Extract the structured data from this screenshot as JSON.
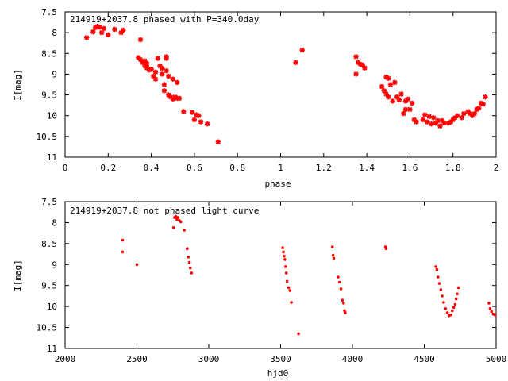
{
  "chart_data": [
    {
      "type": "scatter",
      "title": "214919+2037.8 phased with P=340.0day",
      "xlabel": "phase",
      "ylabel": "I[mag]",
      "xlim": [
        0,
        2
      ],
      "ylim": [
        11,
        7.5
      ],
      "y_inverted": true,
      "grid": false,
      "xticks": [
        "0",
        "0.2",
        "0.4",
        "0.6",
        "0.8",
        "1",
        "1.2",
        "1.4",
        "1.6",
        "1.8",
        "2"
      ],
      "yticks": [
        "7.5",
        "8",
        "8.5",
        "9",
        "9.5",
        "10",
        "10.5",
        "11"
      ],
      "marker": "star",
      "color": "#ff0000",
      "points": [
        [
          0.1,
          8.12
        ],
        [
          0.13,
          7.98
        ],
        [
          0.14,
          7.88
        ],
        [
          0.15,
          7.85
        ],
        [
          0.16,
          7.87
        ],
        [
          0.17,
          8.0
        ],
        [
          0.18,
          7.9
        ],
        [
          0.2,
          8.05
        ],
        [
          0.23,
          7.92
        ],
        [
          0.26,
          8.0
        ],
        [
          0.27,
          7.94
        ],
        [
          0.35,
          8.17
        ],
        [
          0.34,
          8.6
        ],
        [
          0.35,
          8.65
        ],
        [
          0.36,
          8.72
        ],
        [
          0.37,
          8.68
        ],
        [
          0.37,
          8.8
        ],
        [
          0.38,
          8.75
        ],
        [
          0.38,
          8.85
        ],
        [
          0.39,
          8.9
        ],
        [
          0.4,
          8.88
        ],
        [
          0.41,
          9.05
        ],
        [
          0.42,
          9.12
        ],
        [
          0.42,
          8.95
        ],
        [
          0.43,
          8.62
        ],
        [
          0.44,
          8.8
        ],
        [
          0.45,
          8.86
        ],
        [
          0.45,
          9.0
        ],
        [
          0.46,
          9.25
        ],
        [
          0.46,
          9.4
        ],
        [
          0.47,
          8.58
        ],
        [
          0.47,
          8.62
        ],
        [
          0.47,
          8.92
        ],
        [
          0.48,
          9.05
        ],
        [
          0.48,
          9.5
        ],
        [
          0.49,
          9.55
        ],
        [
          0.5,
          9.12
        ],
        [
          0.5,
          9.6
        ],
        [
          0.51,
          9.55
        ],
        [
          0.52,
          9.2
        ],
        [
          0.52,
          9.58
        ],
        [
          0.53,
          9.58
        ],
        [
          0.55,
          9.9
        ],
        [
          0.59,
          9.92
        ],
        [
          0.6,
          10.1
        ],
        [
          0.61,
          9.98
        ],
        [
          0.62,
          10.0
        ],
        [
          0.63,
          10.15
        ],
        [
          0.66,
          10.2
        ],
        [
          0.71,
          10.63
        ],
        [
          1.07,
          8.72
        ],
        [
          1.1,
          8.42
        ],
        [
          1.35,
          8.58
        ],
        [
          1.35,
          9.0
        ],
        [
          1.36,
          8.72
        ],
        [
          1.37,
          8.76
        ],
        [
          1.38,
          8.78
        ],
        [
          1.39,
          8.85
        ],
        [
          1.47,
          9.3
        ],
        [
          1.48,
          9.4
        ],
        [
          1.49,
          9.07
        ],
        [
          1.49,
          9.48
        ],
        [
          1.5,
          9.1
        ],
        [
          1.5,
          9.55
        ],
        [
          1.51,
          9.25
        ],
        [
          1.52,
          9.65
        ],
        [
          1.53,
          9.2
        ],
        [
          1.54,
          9.55
        ],
        [
          1.55,
          9.62
        ],
        [
          1.56,
          9.48
        ],
        [
          1.57,
          9.95
        ],
        [
          1.58,
          9.65
        ],
        [
          1.58,
          9.85
        ],
        [
          1.59,
          9.6
        ],
        [
          1.6,
          9.85
        ],
        [
          1.61,
          9.7
        ],
        [
          1.62,
          10.1
        ],
        [
          1.63,
          10.15
        ],
        [
          1.66,
          10.1
        ],
        [
          1.67,
          9.98
        ],
        [
          1.68,
          10.15
        ],
        [
          1.69,
          10.02
        ],
        [
          1.7,
          10.2
        ],
        [
          1.71,
          10.05
        ],
        [
          1.72,
          10.18
        ],
        [
          1.73,
          10.12
        ],
        [
          1.74,
          10.25
        ],
        [
          1.75,
          10.12
        ],
        [
          1.76,
          10.18
        ],
        [
          1.78,
          10.18
        ],
        [
          1.79,
          10.15
        ],
        [
          1.8,
          10.1
        ],
        [
          1.81,
          10.05
        ],
        [
          1.82,
          10.0
        ],
        [
          1.84,
          10.05
        ],
        [
          1.85,
          9.95
        ],
        [
          1.87,
          9.9
        ],
        [
          1.88,
          9.95
        ],
        [
          1.89,
          10.0
        ],
        [
          1.9,
          9.95
        ],
        [
          1.91,
          9.85
        ],
        [
          1.92,
          9.82
        ],
        [
          1.93,
          9.7
        ],
        [
          1.94,
          9.72
        ],
        [
          1.95,
          9.55
        ]
      ]
    },
    {
      "type": "scatter",
      "title": "214919+2037.8 not phased light curve",
      "xlabel": "hjd0",
      "ylabel": "I[mag]",
      "xlim": [
        2000,
        5000
      ],
      "ylim": [
        11,
        7.5
      ],
      "y_inverted": true,
      "grid": false,
      "xticks": [
        "2000",
        "2500",
        "3000",
        "3500",
        "4000",
        "4500",
        "5000"
      ],
      "yticks": [
        "7.5",
        "8",
        "8.5",
        "9",
        "9.5",
        "10",
        "10.5",
        "11"
      ],
      "marker": "dot",
      "color": "#ff0000",
      "points": [
        [
          2400,
          8.42
        ],
        [
          2400,
          8.7
        ],
        [
          2500,
          9.0
        ],
        [
          2755,
          8.12
        ],
        [
          2762,
          7.88
        ],
        [
          2770,
          7.85
        ],
        [
          2778,
          7.92
        ],
        [
          2785,
          7.88
        ],
        [
          2795,
          7.95
        ],
        [
          2805,
          7.98
        ],
        [
          2830,
          8.18
        ],
        [
          2850,
          8.62
        ],
        [
          2858,
          8.82
        ],
        [
          2865,
          8.95
        ],
        [
          2872,
          9.08
        ],
        [
          2880,
          9.2
        ],
        [
          3515,
          8.6
        ],
        [
          3520,
          8.7
        ],
        [
          3525,
          8.8
        ],
        [
          3530,
          8.88
        ],
        [
          3535,
          9.05
        ],
        [
          3540,
          9.2
        ],
        [
          3545,
          9.4
        ],
        [
          3555,
          9.55
        ],
        [
          3565,
          9.62
        ],
        [
          3575,
          9.9
        ],
        [
          3625,
          10.65
        ],
        [
          3860,
          8.58
        ],
        [
          3865,
          8.78
        ],
        [
          3870,
          8.85
        ],
        [
          3900,
          9.3
        ],
        [
          3910,
          9.42
        ],
        [
          3920,
          9.58
        ],
        [
          3930,
          9.85
        ],
        [
          3938,
          9.92
        ],
        [
          3945,
          10.1
        ],
        [
          3950,
          10.15
        ],
        [
          4230,
          8.58
        ],
        [
          4235,
          8.62
        ],
        [
          4580,
          9.05
        ],
        [
          4588,
          9.12
        ],
        [
          4595,
          9.3
        ],
        [
          4605,
          9.45
        ],
        [
          4615,
          9.6
        ],
        [
          4625,
          9.75
        ],
        [
          4635,
          9.9
        ],
        [
          4648,
          10.05
        ],
        [
          4660,
          10.15
        ],
        [
          4672,
          10.22
        ],
        [
          4685,
          10.2
        ],
        [
          4695,
          10.1
        ],
        [
          4705,
          10.02
        ],
        [
          4715,
          9.95
        ],
        [
          4722,
          9.82
        ],
        [
          4730,
          9.7
        ],
        [
          4738,
          9.55
        ],
        [
          4950,
          9.92
        ],
        [
          4958,
          10.05
        ],
        [
          4968,
          10.12
        ],
        [
          4980,
          10.18
        ],
        [
          4992,
          10.2
        ]
      ]
    }
  ]
}
